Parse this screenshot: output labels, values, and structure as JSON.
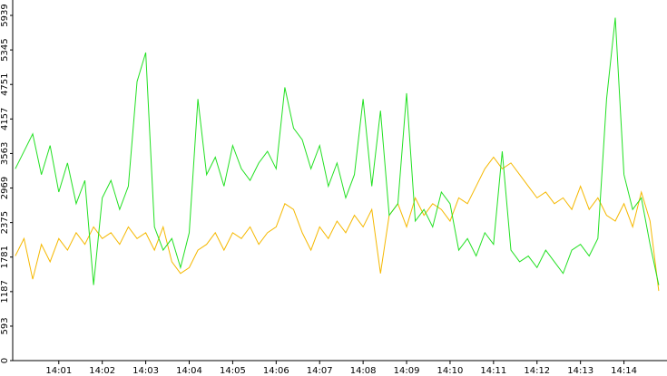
{
  "chart_data": {
    "type": "line",
    "x": [
      0,
      0.2,
      0.4,
      0.6,
      0.8,
      1,
      1.2,
      1.4,
      1.6,
      1.8,
      2,
      2.2,
      2.4,
      2.6,
      2.8,
      3,
      3.2,
      3.4,
      3.6,
      3.8,
      4,
      4.2,
      4.4,
      4.6,
      4.8,
      5,
      5.2,
      5.4,
      5.6,
      5.8,
      6,
      6.2,
      6.4,
      6.6,
      6.8,
      7,
      7.2,
      7.4,
      7.6,
      7.8,
      8,
      8.2,
      8.4,
      8.6,
      8.8,
      9,
      9.2,
      9.4,
      9.6,
      9.8,
      10,
      10.2,
      10.4,
      10.6,
      10.8,
      11,
      11.2,
      11.4,
      11.6,
      11.8,
      12,
      12.2,
      12.4,
      12.6,
      12.8,
      13,
      13.2,
      13.4,
      13.6,
      13.8,
      14,
      14.2,
      14.4,
      14.6,
      14.8
    ],
    "series": [
      {
        "color": "#22e022",
        "values": [
          3300,
          3600,
          3900,
          3200,
          3700,
          2900,
          3400,
          2700,
          3100,
          1300,
          2800,
          3100,
          2600,
          3000,
          4800,
          5300,
          2300,
          1900,
          2100,
          1600,
          2200,
          4500,
          3200,
          3500,
          3000,
          3700,
          3300,
          3100,
          3400,
          3600,
          3300,
          4700,
          4000,
          3800,
          3300,
          3700,
          3000,
          3400,
          2800,
          3200,
          4500,
          3000,
          4300,
          2500,
          2700,
          4600,
          2400,
          2600,
          2300,
          2900,
          2700,
          1900,
          2100,
          1800,
          2200,
          2000,
          3600,
          1900,
          1700,
          1800,
          1600,
          1900,
          1700,
          1500,
          1900,
          2000,
          1800,
          2100,
          4500,
          5900,
          3200,
          2600,
          2800,
          2000,
          1300
        ]
      },
      {
        "color": "#f5b800",
        "values": [
          1800,
          2100,
          1400,
          2000,
          1700,
          2100,
          1900,
          2200,
          2000,
          2300,
          2100,
          2200,
          2000,
          2300,
          2100,
          2200,
          1900,
          2300,
          1700,
          1500,
          1600,
          1900,
          2000,
          2200,
          1900,
          2200,
          2100,
          2300,
          2000,
          2200,
          2300,
          2700,
          2600,
          2200,
          1900,
          2300,
          2100,
          2400,
          2200,
          2500,
          2300,
          2600,
          1500,
          2500,
          2700,
          2300,
          2800,
          2500,
          2700,
          2600,
          2400,
          2800,
          2700,
          3000,
          3300,
          3500,
          3300,
          3400,
          3200,
          3000,
          2800,
          2900,
          2700,
          2800,
          2600,
          3000,
          2600,
          2800,
          2500,
          2400,
          2700,
          2300,
          2900,
          2400,
          1200
        ]
      }
    ],
    "ylim": [
      0,
      5939
    ],
    "yticks": [
      0,
      593,
      1187,
      1781,
      2375,
      2969,
      3563,
      4157,
      4751,
      5345,
      5939
    ],
    "xlim": [
      -0.06,
      14.99
    ],
    "xticks": [
      {
        "value": 1,
        "label": "14:01"
      },
      {
        "value": 2,
        "label": "14:02"
      },
      {
        "value": 3,
        "label": "14:03"
      },
      {
        "value": 4,
        "label": "14:04"
      },
      {
        "value": 5,
        "label": "14:05"
      },
      {
        "value": 6,
        "label": "14:06"
      },
      {
        "value": 7,
        "label": "14:07"
      },
      {
        "value": 8,
        "label": "14:08"
      },
      {
        "value": 9,
        "label": "14:09"
      },
      {
        "value": 10,
        "label": "14:10"
      },
      {
        "value": 11,
        "label": "14:11"
      },
      {
        "value": 12,
        "label": "14:12"
      },
      {
        "value": 13,
        "label": "14:13"
      },
      {
        "value": 14,
        "label": "14:14"
      }
    ]
  }
}
